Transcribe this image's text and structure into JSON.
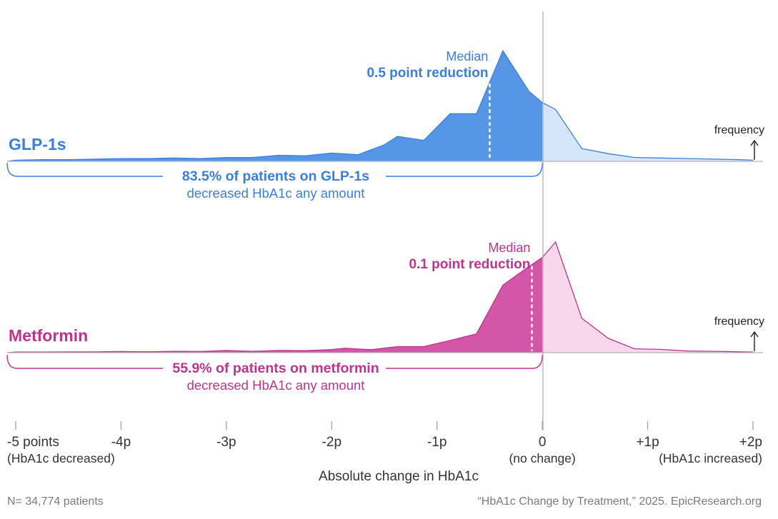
{
  "chart_data": {
    "type": "area",
    "xlabel": "Absolute change in HbA1c",
    "xlim": [
      -5,
      2
    ],
    "x_ticks": [
      {
        "value": -5,
        "label": "-5 points",
        "sublabel": "(HbA1c decreased)"
      },
      {
        "value": -4,
        "label": "-4p",
        "sublabel": ""
      },
      {
        "value": -3,
        "label": "-3p",
        "sublabel": ""
      },
      {
        "value": -2,
        "label": "-2p",
        "sublabel": ""
      },
      {
        "value": -1,
        "label": "-1p",
        "sublabel": ""
      },
      {
        "value": 0,
        "label": "0",
        "sublabel": "(no change)"
      },
      {
        "value": 1,
        "label": "+1p",
        "sublabel": ""
      },
      {
        "value": 2,
        "label": "+2p",
        "sublabel": "(HbA1c increased)"
      }
    ],
    "frequency_label": "frequency",
    "series": [
      {
        "name": "GLP-1s",
        "color": "#3a7fdd",
        "fill_dark": "#5596e6",
        "fill_light": "#d6e6fa",
        "median": -0.5,
        "median_title": "Median",
        "median_label": "0.5 point reduction",
        "percent_text": "83.5% of patients on GLP-1s",
        "percent_sub": "decreased HbA1c any amount",
        "x": [
          -5,
          -4.75,
          -4.5,
          -4.25,
          -4,
          -3.75,
          -3.5,
          -3.25,
          -3,
          -2.75,
          -2.5,
          -2.25,
          -2,
          -1.75,
          -1.5,
          -1.375,
          -1.125,
          -0.875,
          -0.625,
          -0.375,
          -0.125,
          0,
          0.125,
          0.375,
          0.625,
          0.875,
          1.125,
          1.375,
          1.625,
          1.875,
          2
        ],
        "y": [
          0.01,
          0.015,
          0.015,
          0.02,
          0.025,
          0.025,
          0.03,
          0.025,
          0.035,
          0.035,
          0.055,
          0.05,
          0.075,
          0.06,
          0.15,
          0.225,
          0.19,
          0.43,
          0.43,
          1.0,
          0.63,
          0.53,
          0.47,
          0.115,
          0.07,
          0.035,
          0.03,
          0.025,
          0.02,
          0.015,
          0.01
        ]
      },
      {
        "name": "Metformin",
        "color": "#c0338b",
        "fill_dark": "#d356a8",
        "fill_light": "#f8d6eb",
        "median": -0.1,
        "median_title": "Median",
        "median_label": "0.1 point reduction",
        "percent_text": "55.9% of patients on metformin",
        "percent_sub": "decreased HbA1c any amount",
        "x": [
          -5,
          -4.75,
          -4.5,
          -4.25,
          -4,
          -3.75,
          -3.5,
          -3.25,
          -3,
          -2.75,
          -2.5,
          -2.25,
          -2,
          -1.875,
          -1.625,
          -1.375,
          -1.125,
          -0.875,
          -0.625,
          -0.375,
          -0.125,
          0,
          0.125,
          0.375,
          0.625,
          0.875,
          1.125,
          1.375,
          1.625,
          1.875,
          2
        ],
        "y": [
          0.005,
          0.005,
          0.007,
          0.007,
          0.01,
          0.008,
          0.012,
          0.01,
          0.02,
          0.012,
          0.02,
          0.018,
          0.028,
          0.04,
          0.027,
          0.055,
          0.055,
          0.11,
          0.17,
          0.61,
          0.78,
          0.86,
          1.0,
          0.31,
          0.13,
          0.035,
          0.03,
          0.015,
          0.012,
          0.008,
          0.006
        ]
      }
    ]
  },
  "footer": {
    "note": "N= 34,774 patients",
    "source": "“HbA1c Change by Treatment,” 2025. EpicResearch.org"
  }
}
